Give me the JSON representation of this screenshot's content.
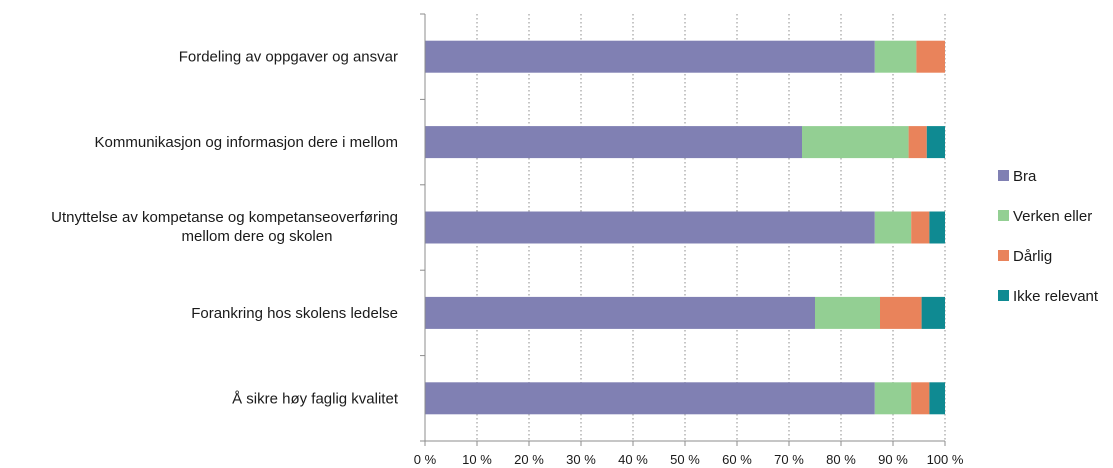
{
  "chart_data": {
    "type": "bar",
    "orientation": "horizontal",
    "stacked": "percent",
    "categories": [
      [
        "Fordeling av oppgaver og ansvar"
      ],
      [
        "Kommunikasjon og informasjon dere i mellom"
      ],
      [
        "Utnyttelse av kompetanse og kompetanseoverføring",
        "mellom dere og skolen"
      ],
      [
        "Forankring hos skolens ledelse"
      ],
      [
        "Å sikre høy faglig kvalitet"
      ]
    ],
    "series": [
      {
        "name": "Bra",
        "color": "#8080b3",
        "values": [
          86.5,
          72.5,
          86.5,
          75.0,
          86.5
        ]
      },
      {
        "name": "Verken eller",
        "color": "#93cf93",
        "values": [
          8.0,
          20.5,
          7.0,
          12.5,
          7.0
        ]
      },
      {
        "name": "Dårlig",
        "color": "#e9835b",
        "values": [
          5.5,
          3.5,
          3.5,
          8.0,
          3.5
        ]
      },
      {
        "name": "Ikke relevant",
        "color": "#0f8a92",
        "values": [
          0.0,
          3.5,
          3.0,
          4.5,
          3.0
        ]
      }
    ],
    "xticks": [
      "0 %",
      "10 %",
      "20 %",
      "30 %",
      "40 %",
      "50 %",
      "60 %",
      "70 %",
      "80 %",
      "90 %",
      "100 %"
    ],
    "xlim": [
      0,
      100
    ],
    "grid": "vertical dotted",
    "legend_position": "right"
  }
}
